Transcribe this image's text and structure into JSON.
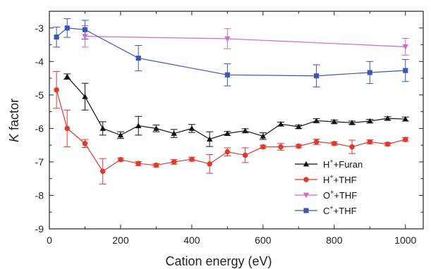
{
  "chart_data": {
    "type": "line",
    "title": "",
    "xlabel": "Cation energy (eV)",
    "ylabel_italic": "K",
    "ylabel_rest": " factor",
    "xlim": [
      0,
      1050
    ],
    "ylim": [
      -9,
      -2.5
    ],
    "xticks": [
      0,
      200,
      400,
      600,
      800,
      1000
    ],
    "yticks": [
      -9,
      -8,
      -7,
      -6,
      -5,
      -4,
      -3
    ],
    "grid": false,
    "legend_position": "bottom-right",
    "series": [
      {
        "name_base": "H",
        "name_sup": "+",
        "name_rest": "+Furan",
        "color": "#111111",
        "marker": "triangle-up",
        "x": [
          50,
          100,
          150,
          200,
          250,
          300,
          350,
          400,
          450,
          500,
          550,
          600,
          650,
          700,
          750,
          800,
          850,
          900,
          950,
          1000
        ],
        "y": [
          -4.45,
          -5.05,
          -6.0,
          -6.2,
          -5.92,
          -6.0,
          -6.15,
          -6.0,
          -6.32,
          -6.15,
          -6.07,
          -6.23,
          -5.87,
          -5.95,
          -5.77,
          -5.8,
          -5.83,
          -5.78,
          -5.7,
          -5.72
        ],
        "err": [
          0.08,
          0.4,
          0.2,
          0.1,
          0.28,
          0.1,
          0.12,
          0.12,
          0.22,
          0.06,
          0.06,
          0.1,
          0.06,
          0.05,
          0.06,
          0.05,
          0.05,
          0.05,
          0.05,
          0.06
        ]
      },
      {
        "name_base": "H",
        "name_sup": "+",
        "name_rest": "+THF",
        "color": "#e03a2f",
        "marker": "circle",
        "x": [
          20,
          50,
          100,
          150,
          200,
          250,
          300,
          350,
          400,
          450,
          500,
          550,
          600,
          650,
          700,
          750,
          800,
          850,
          900,
          950,
          1000
        ],
        "y": [
          -4.85,
          -6.0,
          -6.45,
          -7.28,
          -6.93,
          -7.05,
          -7.1,
          -7.0,
          -6.92,
          -7.06,
          -6.7,
          -6.8,
          -6.55,
          -6.55,
          -6.53,
          -6.4,
          -6.45,
          -6.55,
          -6.4,
          -6.47,
          -6.33
        ],
        "err": [
          0.55,
          0.55,
          0.12,
          0.38,
          0.05,
          0.06,
          0.05,
          0.07,
          0.06,
          0.28,
          0.12,
          0.22,
          0.05,
          0.1,
          0.05,
          0.08,
          0.05,
          0.2,
          0.06,
          0.05,
          0.06
        ]
      },
      {
        "name_base": "O",
        "name_sup": "+",
        "name_rest": "+THF",
        "color": "#d066d0",
        "marker": "triangle-down",
        "x": [
          100,
          500,
          1000
        ],
        "y": [
          -3.25,
          -3.32,
          -3.56
        ],
        "err": [
          0.32,
          0.3,
          0.25
        ]
      },
      {
        "name_base": "C",
        "name_sup": "+",
        "name_rest": "+THF",
        "color": "#3a56b8",
        "marker": "square",
        "x": [
          20,
          50,
          100,
          250,
          500,
          750,
          900,
          1000
        ],
        "y": [
          -3.27,
          -3.0,
          -3.05,
          -3.9,
          -4.4,
          -4.43,
          -4.33,
          -4.27
        ],
        "err": [
          0.3,
          0.28,
          0.28,
          0.38,
          0.33,
          0.33,
          0.33,
          0.33
        ]
      }
    ]
  }
}
